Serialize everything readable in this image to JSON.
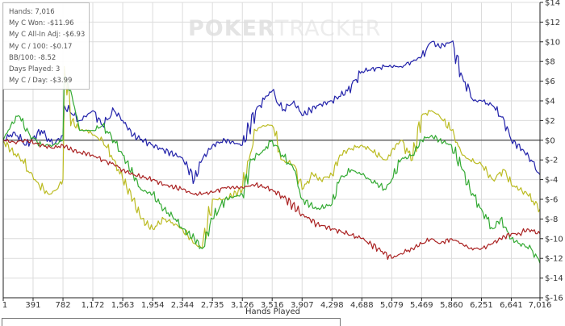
{
  "watermark": {
    "bold": "POKER",
    "light": "TRACKER"
  },
  "stats": {
    "hands": "Hands: 7,016",
    "won": "My C Won: -$11.96",
    "allin": "My C All-In Adj: -$6.93",
    "per100": "My C / 100: -$0.17",
    "bb100": "BB/100: -8.52",
    "days": "Days Played: 3",
    "perday": "My C / Day: -$3.99"
  },
  "chart_data": {
    "type": "line",
    "xlabel": "Hands Played",
    "ylabel": "",
    "xlim": [
      1,
      7016
    ],
    "ylim": [
      -16,
      14
    ],
    "x_ticks": [
      1,
      391,
      782,
      1172,
      1563,
      1954,
      2344,
      2735,
      3126,
      3516,
      3907,
      4298,
      4688,
      5079,
      5469,
      5860,
      6251,
      6641,
      7016
    ],
    "x_tick_labels": [
      "1",
      "391",
      "782",
      "1,172",
      "1,563",
      "1,954",
      "2,344",
      "2,735",
      "3,126",
      "3,516",
      "3,907",
      "4,298",
      "4,688",
      "5,079",
      "5,469",
      "5,860",
      "6,251",
      "6,641",
      "7,016"
    ],
    "y_ticks": [
      14,
      12,
      10,
      8,
      6,
      4,
      2,
      0,
      -2,
      -4,
      -6,
      -8,
      -10,
      -12,
      -14,
      -16
    ],
    "y_tick_labels": [
      "$14",
      "$12",
      "$10",
      "$8",
      "$6",
      "$4",
      "$2",
      "$0",
      "$-2",
      "$-4",
      "$-6",
      "$-8",
      "$-10",
      "$-12",
      "$-14",
      "$-16"
    ],
    "grid": true,
    "series": [
      {
        "color": "#2222aa",
        "points": [
          [
            1,
            0
          ],
          [
            150,
            0.8
          ],
          [
            300,
            -0.5
          ],
          [
            500,
            1
          ],
          [
            650,
            -0.5
          ],
          [
            782,
            0.5
          ],
          [
            800,
            3.5
          ],
          [
            1000,
            2
          ],
          [
            1172,
            3
          ],
          [
            1300,
            1.5
          ],
          [
            1450,
            3
          ],
          [
            1563,
            2
          ],
          [
            1700,
            0.5
          ],
          [
            1954,
            -0.5
          ],
          [
            2100,
            -1
          ],
          [
            2344,
            -1.8
          ],
          [
            2500,
            -4
          ],
          [
            2600,
            -2
          ],
          [
            2735,
            -0.5
          ],
          [
            2900,
            0
          ],
          [
            3126,
            -0.5
          ],
          [
            3300,
            3
          ],
          [
            3450,
            4.5
          ],
          [
            3516,
            5
          ],
          [
            3650,
            3
          ],
          [
            3800,
            4
          ],
          [
            3907,
            2.5
          ],
          [
            4100,
            3.5
          ],
          [
            4298,
            4
          ],
          [
            4500,
            5
          ],
          [
            4688,
            7
          ],
          [
            5000,
            7.5
          ],
          [
            5200,
            7.5
          ],
          [
            5350,
            8
          ],
          [
            5469,
            8.5
          ],
          [
            5600,
            10
          ],
          [
            5700,
            9.5
          ],
          [
            5860,
            10
          ],
          [
            6000,
            6.5
          ],
          [
            6150,
            4
          ],
          [
            6251,
            4
          ],
          [
            6400,
            3.5
          ],
          [
            6550,
            2
          ],
          [
            6641,
            0
          ],
          [
            6800,
            -1
          ],
          [
            6900,
            -2
          ],
          [
            7016,
            -3.5
          ]
        ]
      },
      {
        "color": "#bbbb22",
        "points": [
          [
            1,
            0
          ],
          [
            100,
            -1
          ],
          [
            250,
            -2
          ],
          [
            400,
            -4
          ],
          [
            600,
            -5.5
          ],
          [
            700,
            -5
          ],
          [
            782,
            -4
          ],
          [
            800,
            7.5
          ],
          [
            900,
            2
          ],
          [
            1000,
            1
          ],
          [
            1100,
            1
          ],
          [
            1172,
            0.5
          ],
          [
            1300,
            0
          ],
          [
            1450,
            -2
          ],
          [
            1563,
            -4
          ],
          [
            1700,
            -6
          ],
          [
            1800,
            -8
          ],
          [
            1954,
            -9
          ],
          [
            2100,
            -8
          ],
          [
            2250,
            -8.5
          ],
          [
            2344,
            -9
          ],
          [
            2500,
            -10.5
          ],
          [
            2600,
            -11
          ],
          [
            2735,
            -6
          ],
          [
            2900,
            -6
          ],
          [
            3126,
            -5
          ],
          [
            3300,
            1
          ],
          [
            3400,
            1.5
          ],
          [
            3516,
            1.5
          ],
          [
            3650,
            -2
          ],
          [
            3800,
            -2.5
          ],
          [
            3907,
            -5
          ],
          [
            4050,
            -3.5
          ],
          [
            4150,
            -4
          ],
          [
            4298,
            -3.5
          ],
          [
            4400,
            -1.5
          ],
          [
            4500,
            -1
          ],
          [
            4688,
            -0.5
          ],
          [
            4800,
            -1
          ],
          [
            5000,
            -2
          ],
          [
            5079,
            -1
          ],
          [
            5200,
            0
          ],
          [
            5350,
            -2
          ],
          [
            5469,
            2.5
          ],
          [
            5600,
            3
          ],
          [
            5700,
            2.5
          ],
          [
            5860,
            1
          ],
          [
            6000,
            -1.5
          ],
          [
            6100,
            -2
          ],
          [
            6251,
            -2.5
          ],
          [
            6400,
            -4
          ],
          [
            6550,
            -3
          ],
          [
            6641,
            -4.5
          ],
          [
            6750,
            -5
          ],
          [
            6850,
            -5.5
          ],
          [
            7016,
            -7
          ]
        ]
      },
      {
        "color": "#33aa33",
        "points": [
          [
            1,
            0
          ],
          [
            100,
            1.5
          ],
          [
            200,
            2.5
          ],
          [
            350,
            0.5
          ],
          [
            500,
            -0.5
          ],
          [
            650,
            -0.5
          ],
          [
            782,
            0
          ],
          [
            800,
            6.5
          ],
          [
            900,
            4.5
          ],
          [
            1000,
            1
          ],
          [
            1172,
            1
          ],
          [
            1300,
            1.5
          ],
          [
            1450,
            0
          ],
          [
            1563,
            -1.5
          ],
          [
            1700,
            -3.5
          ],
          [
            1800,
            -5
          ],
          [
            1954,
            -5.5
          ],
          [
            2100,
            -7
          ],
          [
            2250,
            -8
          ],
          [
            2344,
            -9
          ],
          [
            2500,
            -10
          ],
          [
            2600,
            -11
          ],
          [
            2735,
            -8
          ],
          [
            2900,
            -6
          ],
          [
            3126,
            -5.5
          ],
          [
            3250,
            -2
          ],
          [
            3400,
            -1
          ],
          [
            3516,
            0
          ],
          [
            3650,
            -1.5
          ],
          [
            3800,
            -3
          ],
          [
            3907,
            -6
          ],
          [
            4100,
            -7
          ],
          [
            4298,
            -6.5
          ],
          [
            4400,
            -4
          ],
          [
            4550,
            -3
          ],
          [
            4688,
            -3.5
          ],
          [
            4800,
            -4
          ],
          [
            5000,
            -5
          ],
          [
            5079,
            -4
          ],
          [
            5200,
            -2
          ],
          [
            5350,
            -1.5
          ],
          [
            5469,
            0
          ],
          [
            5600,
            0.5
          ],
          [
            5700,
            0
          ],
          [
            5860,
            -0.5
          ],
          [
            6000,
            -3
          ],
          [
            6100,
            -5
          ],
          [
            6251,
            -7
          ],
          [
            6400,
            -9
          ],
          [
            6500,
            -8
          ],
          [
            6641,
            -10
          ],
          [
            6750,
            -10.5
          ],
          [
            6900,
            -11
          ],
          [
            7016,
            -12.5
          ]
        ]
      },
      {
        "color": "#aa2222",
        "points": [
          [
            1,
            0
          ],
          [
            150,
            -0.2
          ],
          [
            300,
            0
          ],
          [
            500,
            -0.5
          ],
          [
            650,
            -0.8
          ],
          [
            782,
            -0.5
          ],
          [
            900,
            -1
          ],
          [
            1000,
            -1.2
          ],
          [
            1172,
            -1.5
          ],
          [
            1300,
            -2
          ],
          [
            1450,
            -2.5
          ],
          [
            1563,
            -3
          ],
          [
            1700,
            -3.5
          ],
          [
            1954,
            -4
          ],
          [
            2100,
            -4.5
          ],
          [
            2344,
            -5
          ],
          [
            2500,
            -5.5
          ],
          [
            2735,
            -5.3
          ],
          [
            2900,
            -4.8
          ],
          [
            3126,
            -4.8
          ],
          [
            3300,
            -4.5
          ],
          [
            3516,
            -5
          ],
          [
            3700,
            -6
          ],
          [
            3907,
            -7.5
          ],
          [
            4100,
            -8.5
          ],
          [
            4298,
            -9
          ],
          [
            4500,
            -9.5
          ],
          [
            4688,
            -10
          ],
          [
            4900,
            -11
          ],
          [
            5079,
            -12
          ],
          [
            5200,
            -11.5
          ],
          [
            5350,
            -11
          ],
          [
            5469,
            -10.5
          ],
          [
            5600,
            -10
          ],
          [
            5700,
            -10.5
          ],
          [
            5860,
            -10
          ],
          [
            6000,
            -10.5
          ],
          [
            6100,
            -11
          ],
          [
            6251,
            -11
          ],
          [
            6400,
            -10.5
          ],
          [
            6500,
            -10
          ],
          [
            6641,
            -9.5
          ],
          [
            6750,
            -9.5
          ],
          [
            6850,
            -9
          ],
          [
            7016,
            -9.5
          ]
        ]
      }
    ]
  }
}
